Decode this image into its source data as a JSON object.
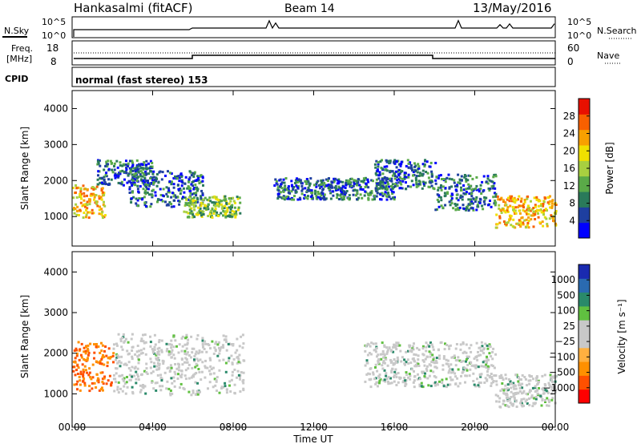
{
  "header": {
    "station": "Hankasalmi (fitACF)",
    "beam": "Beam 14",
    "date": "13/May/2016"
  },
  "top_panels": {
    "nsky_label": "N.Sky",
    "nsky_ticks": [
      "10^5",
      "10^0"
    ],
    "nsearch_label": "N.Search",
    "nsearch_ticks": [
      "10^5",
      "10^0"
    ],
    "freq_label_line1": "Freq.",
    "freq_label_line2": "[MHz]",
    "freq_ticks": [
      "18",
      "8"
    ],
    "nave_label": "Nave",
    "nave_ticks": [
      "60",
      "0"
    ],
    "cpid_label": "CPID",
    "cpid_text": "normal (fast stereo) 153"
  },
  "chart_data": [
    {
      "type": "heatmap",
      "name": "power",
      "ylabel": "Slant Range [km]",
      "yticks": [
        "4000",
        "3000",
        "2000",
        "1000"
      ],
      "ylim": [
        180,
        4500
      ],
      "colorbar_label": "Power [dB]",
      "colorbar_ticks": [
        "28",
        "24",
        "20",
        "16",
        "12",
        "8",
        "4"
      ],
      "colorbar_colors": [
        "#0000ff",
        "#1e3fa0",
        "#2a7a5a",
        "#5aaa48",
        "#a8d040",
        "#f0e000",
        "#f8a000",
        "#f86000",
        "#e81000"
      ],
      "x_range_hours": [
        0,
        24
      ],
      "echo_regions": [
        {
          "x": [
            0.0,
            1.6
          ],
          "y": [
            1000,
            1900
          ],
          "level": "high"
        },
        {
          "x": [
            1.2,
            4.0
          ],
          "y": [
            1900,
            2600
          ],
          "level": "low"
        },
        {
          "x": [
            2.8,
            6.5
          ],
          "y": [
            1300,
            2300
          ],
          "level": "low"
        },
        {
          "x": [
            5.5,
            8.3
          ],
          "y": [
            1000,
            1600
          ],
          "level": "medium"
        },
        {
          "x": [
            10.0,
            16.0
          ],
          "y": [
            1500,
            2100
          ],
          "level": "low"
        },
        {
          "x": [
            15.0,
            18.0
          ],
          "y": [
            1800,
            2600
          ],
          "level": "low"
        },
        {
          "x": [
            18.0,
            21.0
          ],
          "y": [
            1200,
            2200
          ],
          "level": "low"
        },
        {
          "x": [
            21.0,
            24.0
          ],
          "y": [
            700,
            1600
          ],
          "level": "high"
        }
      ]
    },
    {
      "type": "heatmap",
      "name": "velocity",
      "ylabel": "Slant Range [km]",
      "yticks": [
        "4000",
        "3000",
        "2000",
        "1000"
      ],
      "ylim": [
        180,
        4500
      ],
      "colorbar_label": "Velocity [m s⁻¹]",
      "colorbar_ticks": [
        "1000",
        "500",
        "100",
        "25",
        "−25",
        "−100",
        "−500",
        "−1000"
      ],
      "colorbar_colors": [
        "#ff0000",
        "#ff5000",
        "#ff9000",
        "#ffb040",
        "#c8c8c8",
        "#c8c8c8",
        "#60c040",
        "#2a8a6a",
        "#2a6ab0",
        "#1a2ab0"
      ],
      "x_range_hours": [
        0,
        24
      ],
      "echo_regions": [
        {
          "x": [
            0.0,
            2.0
          ],
          "y": [
            1100,
            2300
          ],
          "level": "negative"
        },
        {
          "x": [
            2.0,
            8.5
          ],
          "y": [
            1000,
            2500
          ],
          "level": "near-zero"
        },
        {
          "x": [
            14.5,
            21.0
          ],
          "y": [
            1200,
            2300
          ],
          "level": "near-zero"
        },
        {
          "x": [
            21.0,
            24.0
          ],
          "y": [
            700,
            1500
          ],
          "level": "near-zero"
        }
      ]
    }
  ],
  "xaxis": {
    "ticks": [
      "00:00",
      "04:00",
      "08:00",
      "12:00",
      "16:00",
      "20:00",
      "00:00"
    ],
    "label": "Time UT"
  }
}
